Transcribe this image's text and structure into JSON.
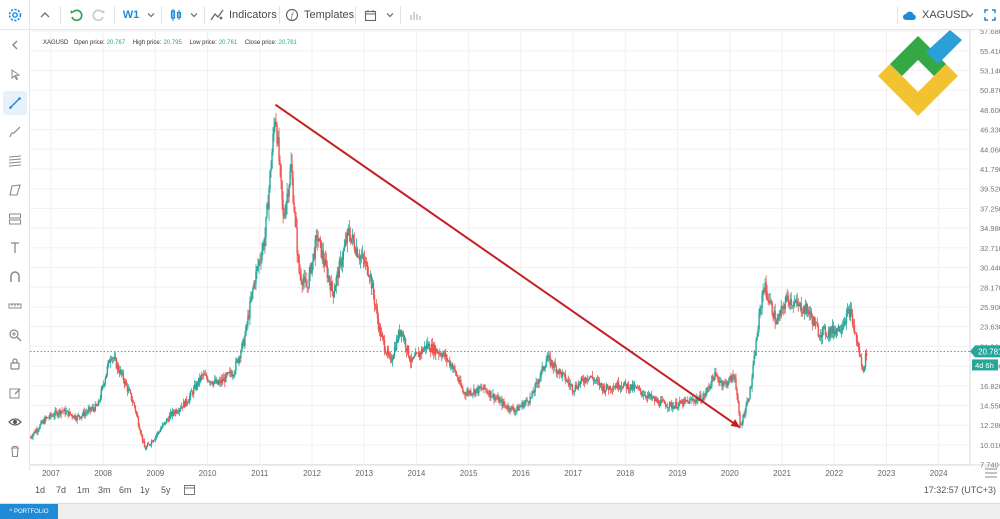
{
  "toolbar": {
    "interval": "W1",
    "indicators_label": "Indicators",
    "templates_label": "Templates",
    "symbol": "XAGUSD"
  },
  "legend": {
    "symbol": "XAGUSD",
    "open_label": "Open price:",
    "open_value": "20.767",
    "high_label": "High price:",
    "high_value": "20.795",
    "low_label": "Low price:",
    "low_value": "20.761",
    "close_label": "Close price:",
    "close_value": "20.781"
  },
  "bottom": {
    "ranges": [
      "1d",
      "7d",
      "1m",
      "3m",
      "6m",
      "1y",
      "5y"
    ],
    "time": "17:32:57 (UTC+3)",
    "portfolio": "PORTFOLIO"
  },
  "colors": {
    "up": "#26a69a",
    "down": "#ef5350",
    "trendline": "#c71f1f",
    "accent": "#1f8ad6"
  },
  "icons": [
    "settings-icon",
    "chevron-up-icon",
    "undo-icon",
    "redo-icon",
    "candles-icon",
    "indicators-icon",
    "templates-icon",
    "calendar-icon",
    "cloud-icon",
    "fullscreen-icon"
  ],
  "chart_data": {
    "type": "candlestick",
    "symbol": "XAGUSD",
    "timeframe": "W1",
    "x_range": [
      2006.6,
      2024.6
    ],
    "y_range": [
      7.7,
      57.8
    ],
    "x_ticks": [
      "2007",
      "2008",
      "2009",
      "2010",
      "2011",
      "2012",
      "2013",
      "2014",
      "2015",
      "2016",
      "2017",
      "2018",
      "2019",
      "2020",
      "2021",
      "2022",
      "2023",
      "2024"
    ],
    "y_ticks": [
      "57.680",
      "55.410",
      "53.140",
      "50.870",
      "48.600",
      "46.330",
      "44.060",
      "41.790",
      "39.520",
      "37.250",
      "34.980",
      "32.710",
      "30.440",
      "28.170",
      "25.900",
      "23.630",
      "21.360",
      "19.090",
      "16.820",
      "14.550",
      "12.280",
      "10.010",
      "7.740"
    ],
    "price_path": [
      [
        2006.6,
        10.9
      ],
      [
        2006.9,
        13.0
      ],
      [
        2007.2,
        14.0
      ],
      [
        2007.5,
        13.2
      ],
      [
        2007.9,
        14.5
      ],
      [
        2008.15,
        20.5
      ],
      [
        2008.4,
        17.5
      ],
      [
        2008.6,
        14.5
      ],
      [
        2008.8,
        9.5
      ],
      [
        2009.0,
        11.0
      ],
      [
        2009.3,
        13.5
      ],
      [
        2009.6,
        15.0
      ],
      [
        2009.9,
        18.0
      ],
      [
        2010.2,
        17.0
      ],
      [
        2010.5,
        18.5
      ],
      [
        2010.7,
        22.0
      ],
      [
        2010.9,
        29.0
      ],
      [
        2011.1,
        34.0
      ],
      [
        2011.3,
        48.5
      ],
      [
        2011.45,
        36.0
      ],
      [
        2011.6,
        42.0
      ],
      [
        2011.75,
        30.0
      ],
      [
        2011.9,
        28.0
      ],
      [
        2012.1,
        34.0
      ],
      [
        2012.4,
        27.5
      ],
      [
        2012.7,
        34.5
      ],
      [
        2012.9,
        32.0
      ],
      [
        2013.1,
        30.0
      ],
      [
        2013.3,
        23.0
      ],
      [
        2013.5,
        19.5
      ],
      [
        2013.7,
        23.5
      ],
      [
        2013.9,
        19.5
      ],
      [
        2014.2,
        21.5
      ],
      [
        2014.5,
        20.5
      ],
      [
        2014.7,
        19.0
      ],
      [
        2014.9,
        16.0
      ],
      [
        2015.3,
        16.5
      ],
      [
        2015.7,
        14.5
      ],
      [
        2015.9,
        14.0
      ],
      [
        2016.2,
        15.5
      ],
      [
        2016.5,
        20.0
      ],
      [
        2016.8,
        18.0
      ],
      [
        2017.0,
        16.5
      ],
      [
        2017.3,
        18.0
      ],
      [
        2017.6,
        16.5
      ],
      [
        2017.9,
        17.0
      ],
      [
        2018.2,
        16.5
      ],
      [
        2018.6,
        15.0
      ],
      [
        2018.9,
        14.5
      ],
      [
        2019.2,
        15.0
      ],
      [
        2019.5,
        15.5
      ],
      [
        2019.7,
        18.0
      ],
      [
        2019.9,
        17.0
      ],
      [
        2020.1,
        18.0
      ],
      [
        2020.2,
        12.0
      ],
      [
        2020.4,
        16.5
      ],
      [
        2020.55,
        24.0
      ],
      [
        2020.65,
        28.5
      ],
      [
        2020.9,
        24.0
      ],
      [
        2021.1,
        27.0
      ],
      [
        2021.3,
        26.0
      ],
      [
        2021.5,
        25.5
      ],
      [
        2021.7,
        23.0
      ],
      [
        2021.9,
        23.0
      ],
      [
        2022.1,
        23.5
      ],
      [
        2022.3,
        25.5
      ],
      [
        2022.45,
        21.5
      ],
      [
        2022.55,
        18.5
      ],
      [
        2022.62,
        20.78
      ]
    ],
    "trendline": {
      "start": [
        2011.3,
        49.2
      ],
      "end": [
        2020.2,
        12.0
      ]
    },
    "last_price": "20.781",
    "countdown": "4d 6h"
  }
}
